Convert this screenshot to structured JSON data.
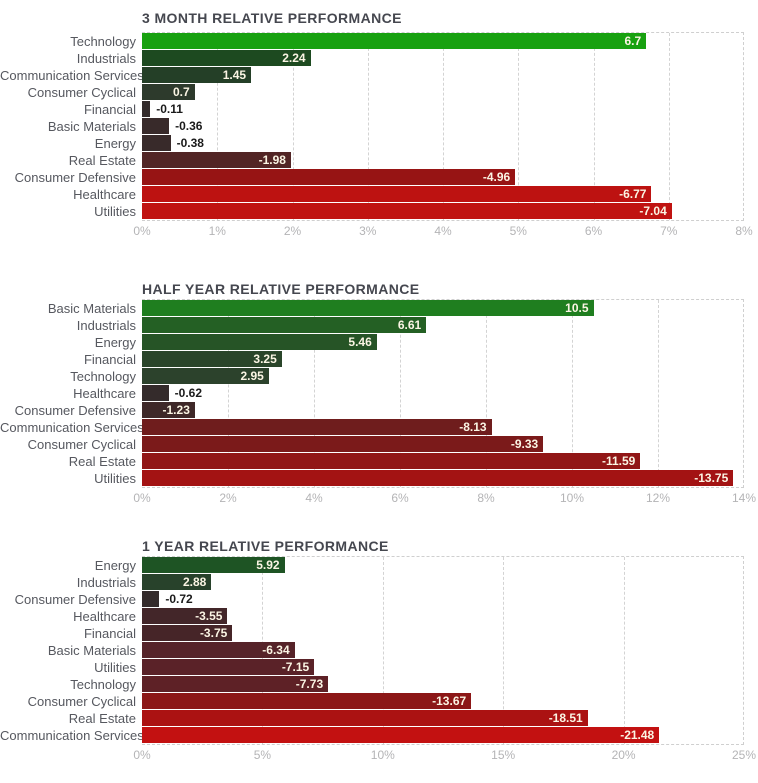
{
  "styles": {
    "title_color": "#45474f",
    "category_label_color": "#56585f",
    "tick_label_color": "#b4b4b6",
    "grid_color": "#d3d3d3",
    "bar_label_inside_color": "#fbf5e4",
    "bar_label_outside_color": "#1a1a1a",
    "positive_bright_color": "#18a110",
    "negative_bright_color": "#c01311"
  },
  "chart_data": [
    {
      "type": "bar",
      "orientation": "horizontal",
      "title": "3 MONTH RELATIVE PERFORMANCE",
      "xlabel": "",
      "ylabel": "",
      "xlim": [
        0,
        8
      ],
      "grid": true,
      "tick_labels": [
        "0%",
        "1%",
        "2%",
        "3%",
        "4%",
        "5%",
        "6%",
        "7%",
        "8%"
      ],
      "tick_values": [
        0,
        1,
        2,
        3,
        4,
        5,
        6,
        7,
        8
      ],
      "categories": [
        "Technology",
        "Industrials",
        "Communication Services",
        "Consumer Cyclical",
        "Financial",
        "Basic Materials",
        "Energy",
        "Real Estate",
        "Consumer Defensive",
        "Healthcare",
        "Utilities"
      ],
      "values": [
        6.7,
        2.24,
        1.45,
        0.7,
        -0.11,
        -0.36,
        -0.38,
        -1.98,
        -4.96,
        -6.77,
        -7.04
      ],
      "value_labels": [
        "6.7",
        "2.24",
        "1.45",
        "0.7",
        "-0.11",
        "-0.36",
        "-0.38",
        "-1.98",
        "-4.96",
        "-6.77",
        "-7.04"
      ],
      "bar_colors": [
        "#18a110",
        "#1d4a20",
        "#243f27",
        "#2d3a2c",
        "#332b2b",
        "#382a2a",
        "#382a2a",
        "#522525",
        "#971414",
        "#bd1211",
        "#c01311"
      ]
    },
    {
      "type": "bar",
      "orientation": "horizontal",
      "title": "HALF YEAR RELATIVE PERFORMANCE",
      "xlabel": "",
      "ylabel": "",
      "xlim": [
        0,
        14
      ],
      "grid": true,
      "tick_labels": [
        "0%",
        "2%",
        "4%",
        "6%",
        "8%",
        "10%",
        "12%",
        "14%"
      ],
      "tick_values": [
        0,
        2,
        4,
        6,
        8,
        10,
        12,
        14
      ],
      "categories": [
        "Basic Materials",
        "Industrials",
        "Energy",
        "Financial",
        "Technology",
        "Healthcare",
        "Consumer Defensive",
        "Communication Services",
        "Consumer Cyclical",
        "Real Estate",
        "Utilities"
      ],
      "values": [
        10.5,
        6.61,
        5.46,
        3.25,
        2.95,
        -0.62,
        -1.23,
        -8.13,
        -9.33,
        -11.59,
        -13.75
      ],
      "value_labels": [
        "10.5",
        "6.61",
        "5.46",
        "3.25",
        "2.95",
        "-0.62",
        "-1.23",
        "-8.13",
        "-9.33",
        "-11.59",
        "-13.75"
      ],
      "bar_colors": [
        "#1f7e1f",
        "#246024",
        "#265426",
        "#2a452a",
        "#2c422c",
        "#342b2b",
        "#3e2828",
        "#6f1d1d",
        "#7b1a1a",
        "#911616",
        "#a31313"
      ]
    },
    {
      "type": "bar",
      "orientation": "horizontal",
      "title": "1 YEAR RELATIVE PERFORMANCE",
      "xlabel": "",
      "ylabel": "",
      "xlim": [
        0,
        25
      ],
      "grid": true,
      "tick_labels": [
        "0%",
        "5%",
        "10%",
        "15%",
        "20%",
        "25%"
      ],
      "tick_values": [
        0,
        5,
        10,
        15,
        20,
        25
      ],
      "categories": [
        "Energy",
        "Industrials",
        "Consumer Defensive",
        "Healthcare",
        "Financial",
        "Basic Materials",
        "Utilities",
        "Technology",
        "Consumer Cyclical",
        "Real Estate",
        "Communication Services"
      ],
      "values": [
        5.92,
        2.88,
        -0.72,
        -3.55,
        -3.75,
        -6.34,
        -7.15,
        -7.73,
        -13.67,
        -18.51,
        -21.48
      ],
      "value_labels": [
        "5.92",
        "2.88",
        "-0.72",
        "-3.55",
        "-3.75",
        "-6.34",
        "-7.15",
        "-7.73",
        "-13.67",
        "-18.51",
        "-21.48"
      ],
      "bar_colors": [
        "#1e5424",
        "#28422b",
        "#342b2b",
        "#432629",
        "#462528",
        "#562329",
        "#5a2228",
        "#5e2126",
        "#8c1717",
        "#ab1212",
        "#c31111"
      ]
    }
  ]
}
